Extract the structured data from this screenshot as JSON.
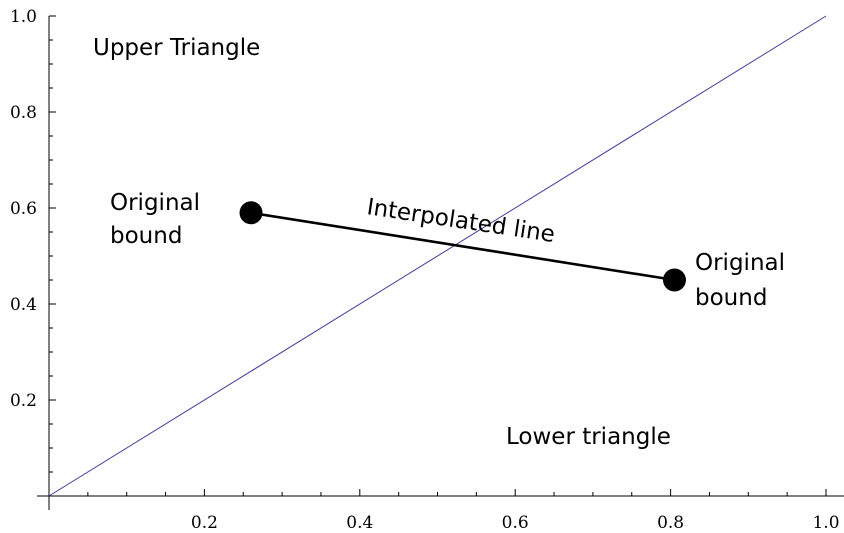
{
  "chart_data": {
    "type": "line",
    "title": "",
    "xlabel": "",
    "ylabel": "",
    "xlim": [
      0,
      1.0
    ],
    "ylim": [
      0,
      1.0
    ],
    "grid": false,
    "x_major_ticks": [
      "0.2",
      "0.4",
      "0.6",
      "0.8",
      "1.0"
    ],
    "y_major_ticks": [
      "0.2",
      "0.4",
      "0.6",
      "0.8",
      "1.0"
    ],
    "diagonal": {
      "x": [
        0,
        1.0
      ],
      "y": [
        0,
        1.0
      ],
      "color": "#3b3b9a"
    },
    "interpolated_line": {
      "x": [
        0.26,
        0.805
      ],
      "y": [
        0.59,
        0.45
      ],
      "color": "#000000"
    },
    "points": [
      {
        "x": 0.26,
        "y": 0.59
      },
      {
        "x": 0.805,
        "y": 0.45
      }
    ],
    "annotations": {
      "upper": "Upper Triangle",
      "lower": "Lower triangle",
      "interp": "Interpolated line",
      "bound_left": [
        "Original",
        "bound"
      ],
      "bound_right": [
        "Original",
        "bound"
      ]
    }
  }
}
